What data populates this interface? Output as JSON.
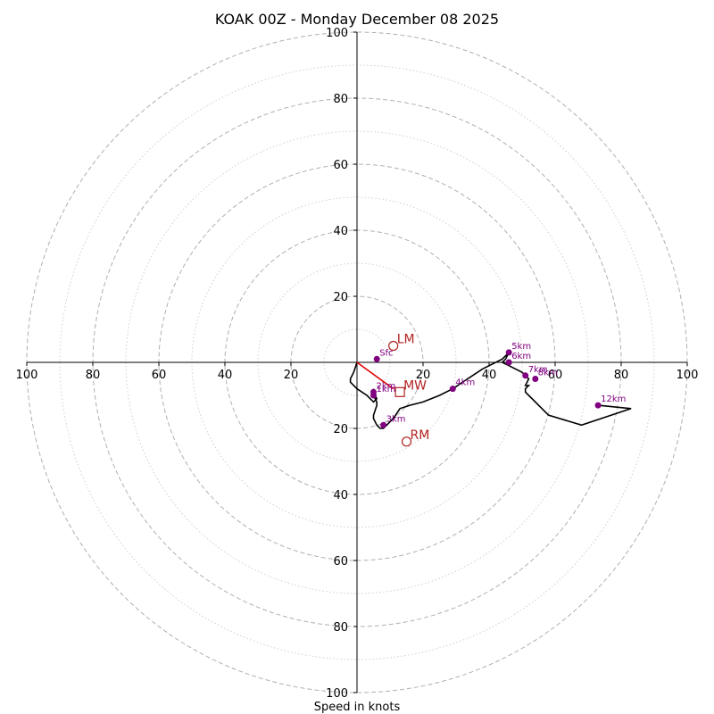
{
  "chart_data": {
    "type": "line",
    "title": "KOAK 00Z - Monday December 08 2025",
    "xlabel": "Speed in knots",
    "ylabel": "",
    "units": "knots",
    "xlim": [
      -100,
      100
    ],
    "ylim": [
      -100,
      100
    ],
    "ring_major": [
      20,
      40,
      60,
      80,
      100
    ],
    "ring_minor": [
      10,
      30,
      50,
      70,
      90
    ],
    "tick_values": [
      100,
      80,
      60,
      40,
      20
    ],
    "x_tick_labels": [
      "100",
      "80",
      "60",
      "40",
      "20",
      "20",
      "40",
      "60",
      "80",
      "100"
    ],
    "y_tick_labels": [
      "100",
      "80",
      "60",
      "40",
      "20",
      "20",
      "40",
      "60",
      "80",
      "100"
    ],
    "grid": true,
    "colors": {
      "hodograph": "#000000",
      "height_points": "#800080",
      "storm_motion": "#b22222",
      "shear_vector": "#e00000",
      "ring": "#b0b0b0"
    },
    "series": [
      {
        "name": "hodograph",
        "u": [
          0,
          -1,
          -2,
          -2,
          0,
          3,
          5,
          6,
          5,
          5,
          5,
          6,
          6,
          5,
          5,
          6,
          7,
          8,
          9,
          11,
          13,
          16,
          20,
          25,
          29,
          32,
          38,
          44,
          46,
          45,
          44,
          44,
          46,
          50,
          52,
          51,
          52,
          51,
          51,
          52,
          58,
          68,
          83,
          73
        ],
        "v": [
          0,
          -3,
          -5,
          -6,
          -8,
          -10,
          -12,
          -11,
          -9,
          -8,
          -10,
          -12,
          -13,
          -16,
          -17,
          -19,
          -20,
          -20,
          -19,
          -17,
          -14,
          -13,
          -12,
          -10,
          -8,
          -6,
          -2,
          1,
          3,
          1,
          0,
          0,
          -1,
          -3,
          -5,
          -7,
          -7,
          -8,
          -9,
          -10,
          -16,
          -19,
          -14,
          -13
        ]
      }
    ],
    "height_points": [
      {
        "label": "Sfc",
        "u": 6,
        "v": 1
      },
      {
        "label": "1km",
        "u": 5,
        "v": -10
      },
      {
        "label": "2km",
        "u": 5,
        "v": -9
      },
      {
        "label": "3km",
        "u": 8,
        "v": -19
      },
      {
        "label": "4km",
        "u": 29,
        "v": -8
      },
      {
        "label": "5km",
        "u": 46,
        "v": 3
      },
      {
        "label": "6km",
        "u": 46,
        "v": 0
      },
      {
        "label": "7km",
        "u": 51,
        "v": -4
      },
      {
        "label": "8km",
        "u": 54,
        "v": -5
      },
      {
        "label": "12km",
        "u": 73,
        "v": -13
      }
    ],
    "storm_motion": [
      {
        "label": "LM",
        "u": 11,
        "v": 5,
        "marker": "circle"
      },
      {
        "label": "MW",
        "u": 13,
        "v": -9,
        "marker": "square"
      },
      {
        "label": "RM",
        "u": 15,
        "v": -24,
        "marker": "circle"
      }
    ],
    "shear_vector": {
      "from": {
        "u": 0,
        "v": 0
      },
      "to": {
        "u": 11,
        "v": -8
      }
    }
  }
}
